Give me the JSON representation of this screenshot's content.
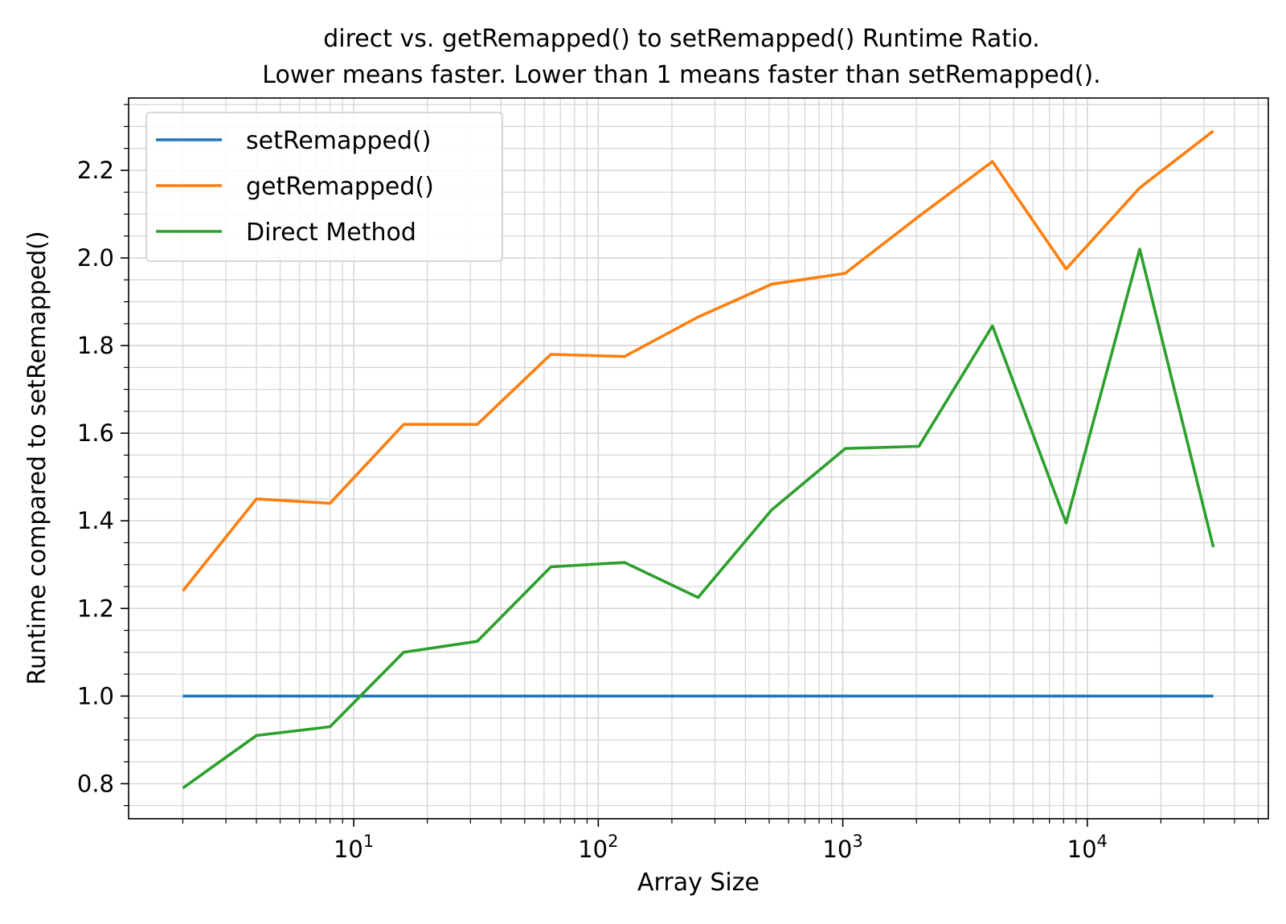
{
  "chart_data": {
    "type": "line",
    "title": "direct vs. getRemapped() to setRemapped() Runtime Ratio.",
    "subtitle": "Lower means faster. Lower than 1 means faster than setRemapped().",
    "xlabel": "Array Size",
    "ylabel": "Runtime compared to setRemapped()",
    "xscale": "log",
    "xlim": [
      1.2,
      55000
    ],
    "ylim": [
      0.72,
      2.365
    ],
    "xticks": [
      10,
      100,
      1000,
      10000
    ],
    "xtick_labels": [
      {
        "base": "10",
        "exp": "1"
      },
      {
        "base": "10",
        "exp": "2"
      },
      {
        "base": "10",
        "exp": "3"
      },
      {
        "base": "10",
        "exp": "4"
      }
    ],
    "yticks": [
      0.8,
      1.0,
      1.2,
      1.4,
      1.6,
      1.8,
      2.0,
      2.2
    ],
    "ytick_labels": [
      "0.8",
      "1.0",
      "1.2",
      "1.4",
      "1.6",
      "1.8",
      "2.0",
      "2.2"
    ],
    "grid": true,
    "legend_position": "top-left",
    "x": [
      2,
      4,
      8,
      16,
      32,
      64,
      128,
      256,
      512,
      1024,
      2048,
      4096,
      8192,
      16384,
      32768
    ],
    "series": [
      {
        "name": "setRemapped()",
        "color": "#1f77b4",
        "values": [
          1.0,
          1.0,
          1.0,
          1.0,
          1.0,
          1.0,
          1.0,
          1.0,
          1.0,
          1.0,
          1.0,
          1.0,
          1.0,
          1.0,
          1.0
        ]
      },
      {
        "name": "getRemapped()",
        "color": "#ff7f0e",
        "values": [
          1.24,
          1.45,
          1.44,
          1.62,
          1.62,
          1.78,
          1.775,
          1.865,
          1.94,
          1.965,
          2.095,
          2.22,
          1.975,
          2.16,
          2.29
        ]
      },
      {
        "name": "Direct Method",
        "color": "#2ca02c",
        "values": [
          0.79,
          0.91,
          0.93,
          1.1,
          1.125,
          1.295,
          1.305,
          1.225,
          1.425,
          1.565,
          1.57,
          1.845,
          1.395,
          2.02,
          1.34
        ]
      }
    ]
  }
}
